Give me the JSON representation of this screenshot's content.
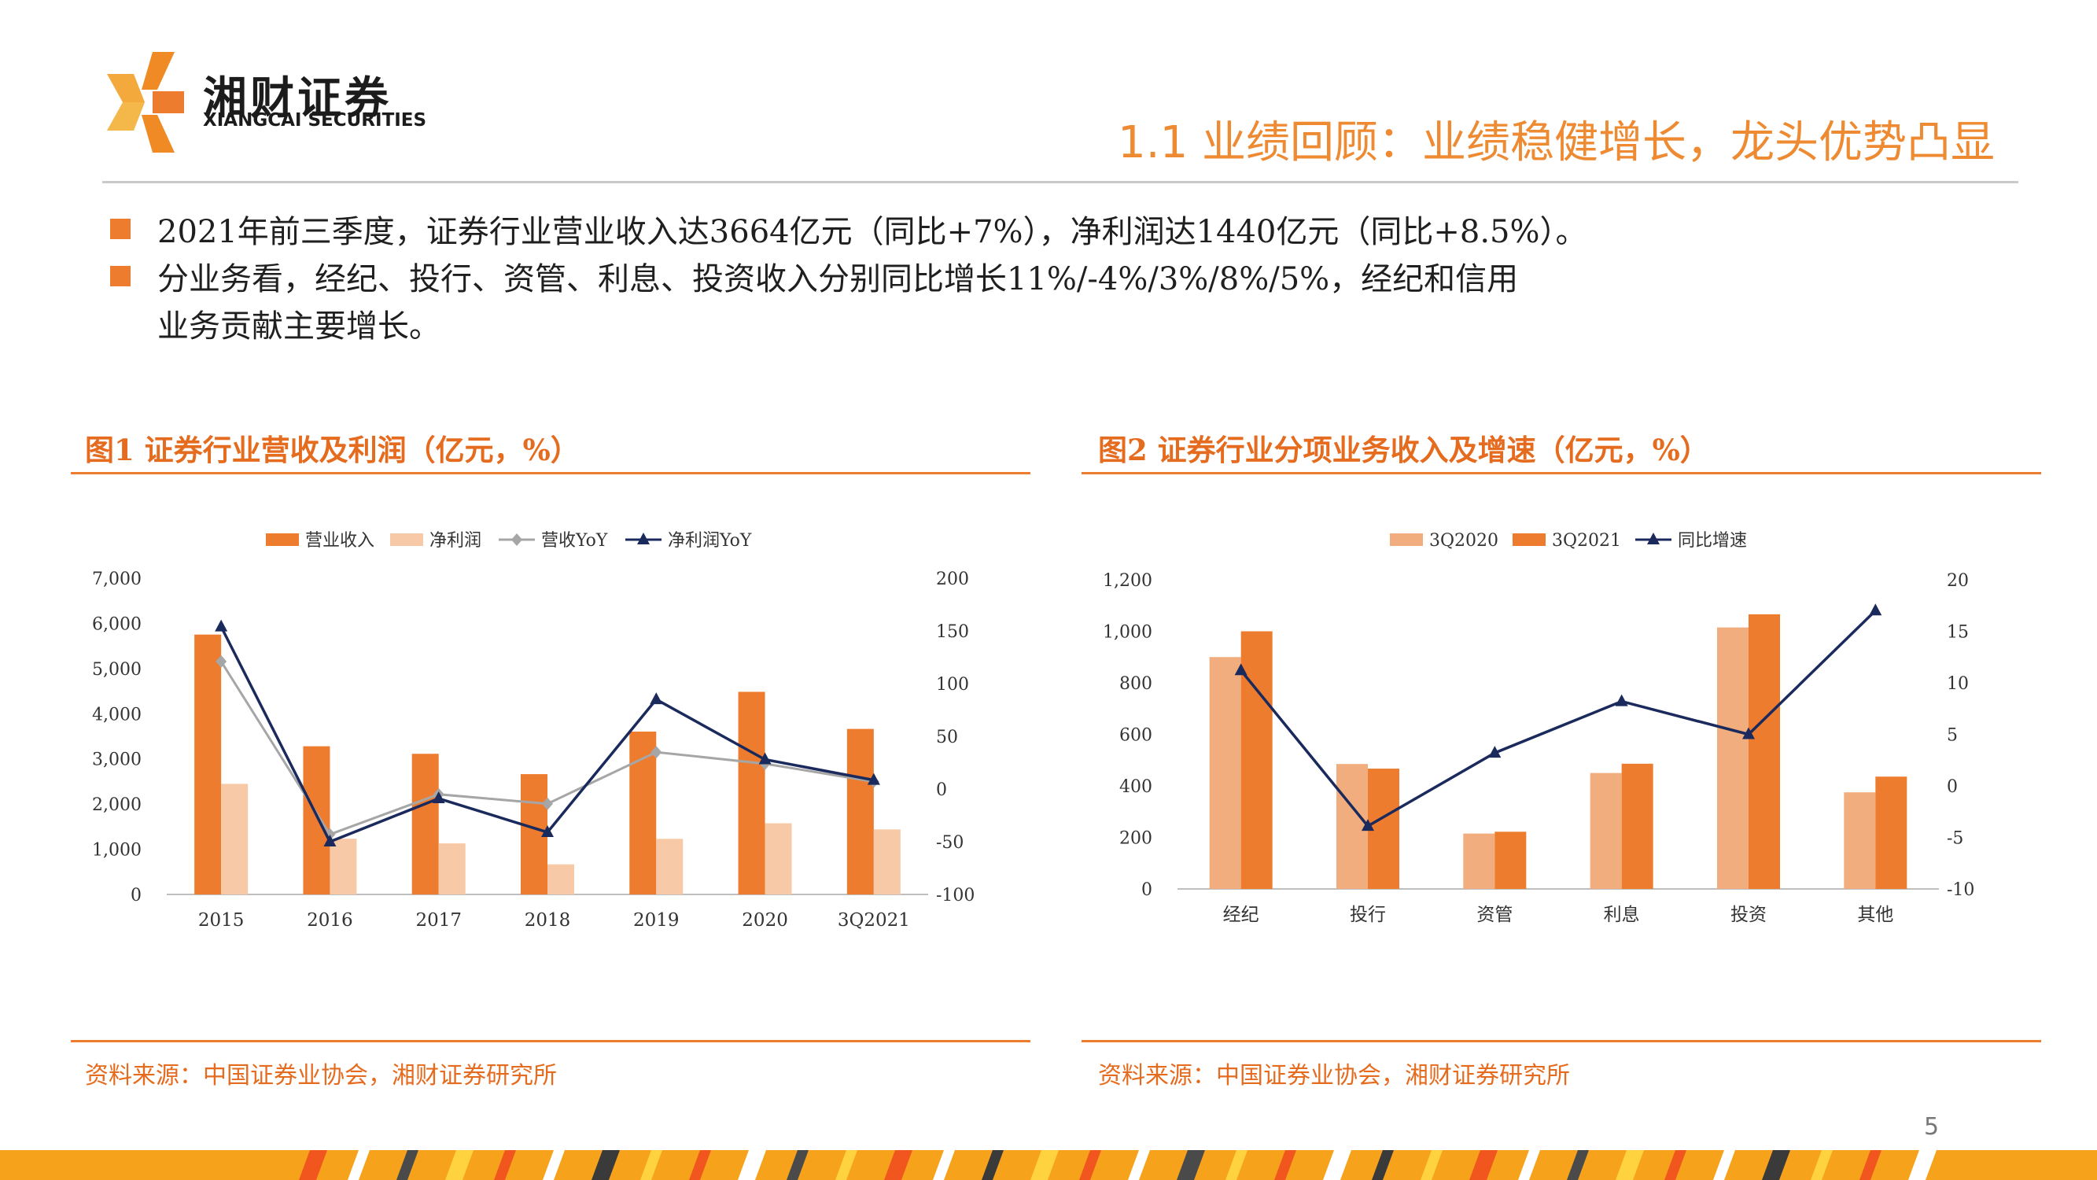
{
  "logo": {
    "name_cn": "湘财证券",
    "name_en": "XIANGCAI SECURITIES"
  },
  "slide_title": "1.1 业绩回顾：业绩稳健增长，龙头优势凸显",
  "bullets": [
    {
      "line1": "2021年前三季度，证券行业营业收入达3664亿元（同比+7%），净利润达1440亿元（同比+8.5%）。"
    },
    {
      "line1": "分业务看，经纪、投行、资管、利息、投资收入分别同比增长11%/-4%/3%/8%/5%，经纪和信用",
      "line2": "业务贡献主要增长。"
    }
  ],
  "page_number": "5",
  "colors": {
    "accent": "#ee7c2f",
    "dark_orange": "#e56b1f",
    "light_orange": "#f8c9a6",
    "mid_orange": "#f2ad7e",
    "navy": "#1b2a5c",
    "gray": "#a6a6a6"
  },
  "chart_data": [
    {
      "type": "bar",
      "title": "图1 证券行业营收及利润（亿元，%）",
      "source": "资料来源：中国证券业协会，湘财证券研究所",
      "categories": [
        "2015",
        "2016",
        "2017",
        "2018",
        "2019",
        "2020",
        "3Q2021"
      ],
      "series": [
        {
          "name": "营业收入",
          "kind": "bar",
          "axis": "left",
          "color": "#ee7c2f",
          "values": [
            5752,
            3280,
            3113,
            2663,
            3605,
            4485,
            3664
          ]
        },
        {
          "name": "净利润",
          "kind": "bar",
          "axis": "left",
          "color": "#f8c9a6",
          "values": [
            2448,
            1234,
            1130,
            666,
            1231,
            1575,
            1440
          ]
        },
        {
          "name": "营收YoY",
          "kind": "line",
          "axis": "right",
          "color": "#a6a6a6",
          "marker": "diamond",
          "values": [
            121,
            -43,
            -5,
            -14,
            35,
            24,
            7
          ]
        },
        {
          "name": "净利润YoY",
          "kind": "line",
          "axis": "right",
          "color": "#1b2a5c",
          "marker": "triangle",
          "values": [
            154,
            -50,
            -9,
            -41,
            85,
            28,
            8.5
          ]
        }
      ],
      "ylim": [
        0,
        7000
      ],
      "yticks": [
        "0",
        "1,000",
        "2,000",
        "3,000",
        "4,000",
        "5,000",
        "6,000",
        "7,000"
      ],
      "y2lim": [
        -100,
        200
      ],
      "y2ticks": [
        "-100",
        "-50",
        "0",
        "50",
        "100",
        "150",
        "200"
      ],
      "legend": "top-center",
      "grid": false
    },
    {
      "type": "bar",
      "title": "图2 证券行业分项业务收入及增速（亿元，%）",
      "source": "资料来源：中国证券业协会，湘财证券研究所",
      "categories": [
        "经纪",
        "投行",
        "资管",
        "利息",
        "投资",
        "其他"
      ],
      "series": [
        {
          "name": "3Q2020",
          "kind": "bar",
          "axis": "left",
          "color": "#f2ad7e",
          "values": [
            900,
            485,
            215,
            450,
            1015,
            375
          ]
        },
        {
          "name": "3Q2021",
          "kind": "bar",
          "axis": "left",
          "color": "#ee7c2f",
          "values": [
            1000,
            467,
            222,
            486,
            1066,
            436
          ]
        },
        {
          "name": "同比增速",
          "kind": "line",
          "axis": "right",
          "color": "#1b2a5c",
          "marker": "triangle",
          "values": [
            11.2,
            -3.9,
            3.2,
            8.2,
            5.0,
            17
          ]
        }
      ],
      "ylim": [
        0,
        1200
      ],
      "yticks": [
        "0",
        "200",
        "400",
        "600",
        "800",
        "1,000",
        "1,200"
      ],
      "y2lim": [
        -10,
        20
      ],
      "y2ticks": [
        "-10",
        "-5",
        "0",
        "5",
        "10",
        "15",
        "20"
      ],
      "legend": "top-center",
      "grid": false
    }
  ]
}
